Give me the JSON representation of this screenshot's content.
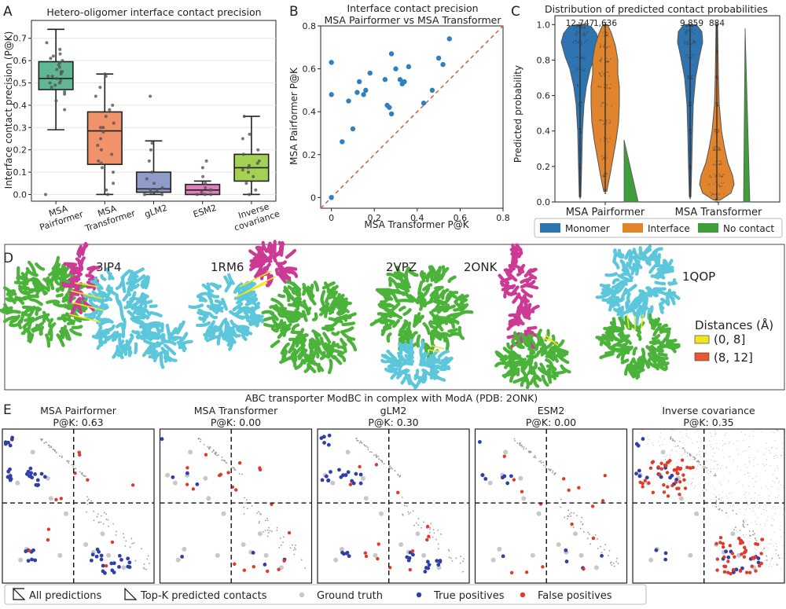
{
  "panel_letters": {
    "a": "A",
    "b": "B",
    "c": "C",
    "d": "D",
    "e": "E"
  },
  "colors": {
    "pairformer": "#5fb893",
    "transformer": "#f0936a",
    "glm2": "#8f9cc9",
    "esm2": "#e07fbe",
    "invcov": "#a4d053",
    "blue": "#2e74b0",
    "orange": "#e0842e",
    "green": "#3f9e3a",
    "scatter": "#2f7fc1",
    "diag": "#e0593b",
    "protein_green": "#4bb33a",
    "protein_cyan": "#5cc6db",
    "protein_magenta": "#cc3a95",
    "contact_yellow": "#f2e41e",
    "contact_red": "#ea5532",
    "tp": "#2f3fa6",
    "fp": "#e03a2a",
    "gt": "#c8c8c8"
  },
  "chart_data": [
    {
      "id": "A",
      "type": "box",
      "title": "Hetero-oligomer interface contact precision",
      "ylabel": "Interface contact precision (P@K)",
      "categories": [
        "MSA\nPairformer",
        "MSA\nTransformer",
        "gLM2",
        "ESM2",
        "Inverse\ncovariance"
      ],
      "ylim": [
        -0.03,
        0.78
      ],
      "yticks": [
        0.0,
        0.1,
        0.2,
        0.3,
        0.4,
        0.5,
        0.6,
        0.7
      ],
      "box_stats": [
        {
          "min": 0.29,
          "q1": 0.47,
          "median": 0.52,
          "q3": 0.595,
          "max": 0.74
        },
        {
          "min": 0.0,
          "q1": 0.135,
          "median": 0.285,
          "q3": 0.37,
          "max": 0.54
        },
        {
          "min": 0.0,
          "q1": 0.01,
          "median": 0.025,
          "q3": 0.1,
          "max": 0.24
        },
        {
          "min": 0.0,
          "q1": 0.0,
          "median": 0.02,
          "q3": 0.045,
          "max": 0.06
        },
        {
          "min": 0.0,
          "q1": 0.06,
          "median": 0.12,
          "q3": 0.18,
          "max": 0.35
        }
      ],
      "points": [
        [
          0.0,
          0.45,
          0.48,
          0.5,
          0.51,
          0.52,
          0.53,
          0.54,
          0.55,
          0.56,
          0.57,
          0.58,
          0.6,
          0.61,
          0.62,
          0.63,
          0.65,
          0.68,
          0.5,
          0.49,
          0.46,
          0.55,
          0.53,
          0.42,
          0.38,
          0.59
        ],
        [
          0.0,
          0.02,
          0.05,
          0.1,
          0.12,
          0.14,
          0.18,
          0.2,
          0.22,
          0.25,
          0.28,
          0.3,
          0.32,
          0.35,
          0.38,
          0.4,
          0.44,
          0.48,
          0.53,
          0.54,
          0.3,
          0.15
        ],
        [
          0.0,
          0.0,
          0.01,
          0.02,
          0.02,
          0.03,
          0.05,
          0.07,
          0.1,
          0.15,
          0.2,
          0.23,
          0.44,
          0.01
        ],
        [
          0.0,
          0.0,
          0.0,
          0.01,
          0.02,
          0.03,
          0.05,
          0.08,
          0.12,
          0.15,
          0.02
        ],
        [
          0.0,
          0.02,
          0.05,
          0.08,
          0.1,
          0.12,
          0.13,
          0.14,
          0.15,
          0.18,
          0.2,
          0.25,
          0.27,
          0.35,
          0.11
        ]
      ]
    },
    {
      "id": "B",
      "type": "scatter",
      "title": "Interface contact precision\nMSA Pairformer vs MSA Transformer",
      "xlabel": "MSA Transformer P@K",
      "ylabel": "MSA Pairformer P@K",
      "xlim": [
        -0.05,
        0.8
      ],
      "ylim": [
        -0.05,
        0.8
      ],
      "xticks": [
        0,
        0.2,
        0.4,
        0.6,
        0.8
      ],
      "yticks": [
        0,
        0.2,
        0.4,
        0.6,
        0.8
      ],
      "x": [
        0.0,
        0.0,
        0.0,
        0.05,
        0.08,
        0.1,
        0.12,
        0.13,
        0.15,
        0.16,
        0.18,
        0.25,
        0.26,
        0.27,
        0.28,
        0.3,
        0.32,
        0.33,
        0.34,
        0.36,
        0.43,
        0.47,
        0.5,
        0.52,
        0.55,
        0.28
      ],
      "y": [
        0.0,
        0.48,
        0.63,
        0.26,
        0.45,
        0.32,
        0.49,
        0.54,
        0.48,
        0.5,
        0.58,
        0.55,
        0.43,
        0.42,
        0.67,
        0.6,
        0.55,
        0.53,
        0.54,
        0.61,
        0.44,
        0.5,
        0.65,
        0.62,
        0.74,
        0.39
      ]
    },
    {
      "id": "C",
      "type": "violin",
      "title": "Distribution of predicted contact probabilities",
      "ylabel": "Predicted probability",
      "groups": [
        "MSA Pairformer",
        "MSA Transformer"
      ],
      "ylim": [
        0,
        1.05
      ],
      "yticks": [
        0.0,
        0.2,
        0.4,
        0.6,
        0.8,
        1.0
      ],
      "counts": {
        "MSA Pairformer": [
          "12,747",
          "1,636"
        ],
        "MSA Transformer": [
          "9,859",
          "884"
        ]
      },
      "legend": [
        "Monomer",
        "Interface",
        "No contact"
      ]
    }
  ],
  "structures": {
    "labels": [
      "3IP4",
      "1RM6",
      "2VPZ",
      "2ONK",
      "1QOP"
    ],
    "legend_title": "Distances (Å)",
    "legend_items": [
      "(0, 8]",
      "(8, 12]"
    ]
  },
  "contact_maps": {
    "suptitle": "ABC transporter ModBC in complex with ModA (PDB: 2ONK)",
    "panels": [
      {
        "method": "MSA Pairformer",
        "pk": "P@K: 0.63"
      },
      {
        "method": "MSA Transformer",
        "pk": "P@K: 0.00"
      },
      {
        "method": "gLM2",
        "pk": "P@K: 0.30"
      },
      {
        "method": "ESM2",
        "pk": "P@K: 0.00"
      },
      {
        "method": "Inverse covariance",
        "pk": "P@K: 0.35"
      }
    ],
    "legend": [
      "All predictions",
      "Top-K predicted contacts",
      "Ground truth",
      "True positives",
      "False positives"
    ]
  }
}
